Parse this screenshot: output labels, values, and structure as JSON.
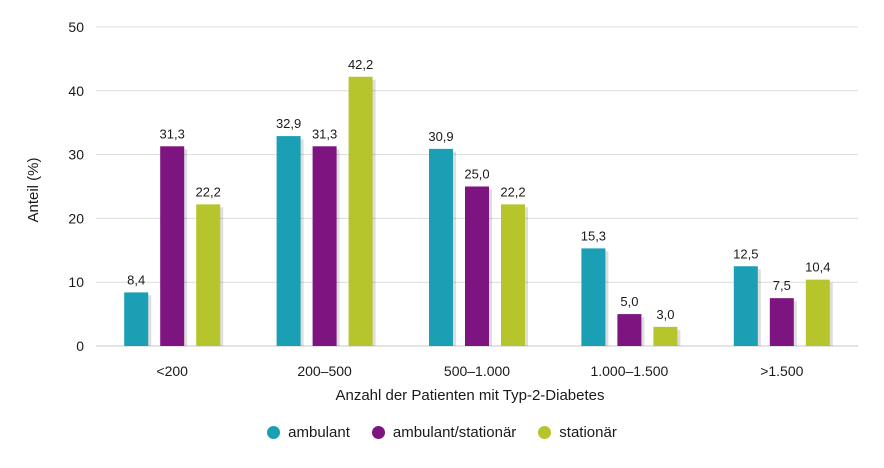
{
  "chart_data": {
    "type": "bar",
    "title": "",
    "xlabel": "Anzahl der Patienten mit Typ-2-Diabetes",
    "ylabel": "Anteil (%)",
    "ylim": [
      0,
      50
    ],
    "yticks": [
      "0",
      "10",
      "20",
      "30",
      "40",
      "50"
    ],
    "categories": [
      "<200",
      "200–500",
      "500–1.000",
      "1.000–1.500",
      ">1.500"
    ],
    "grid": true,
    "legend_position": "bottom-center",
    "series": [
      {
        "name": "ambulant",
        "color": "#1a9fb5",
        "values": [
          8.4,
          32.9,
          30.9,
          15.3,
          12.5
        ],
        "labels": [
          "8,4",
          "32,9",
          "30,9",
          "15,3",
          "12,5"
        ]
      },
      {
        "name": "ambulant/stationär",
        "color": "#7d1480",
        "values": [
          31.3,
          31.3,
          25.0,
          5.0,
          7.5
        ],
        "labels": [
          "31,3",
          "31,3",
          "25,0",
          "5,0",
          "7,5"
        ]
      },
      {
        "name": "stationär",
        "color": "#b6c52c",
        "values": [
          22.2,
          42.2,
          22.2,
          3.0,
          10.4
        ],
        "labels": [
          "22,2",
          "42,2",
          "22,2",
          "3,0",
          "10,4"
        ]
      }
    ]
  }
}
